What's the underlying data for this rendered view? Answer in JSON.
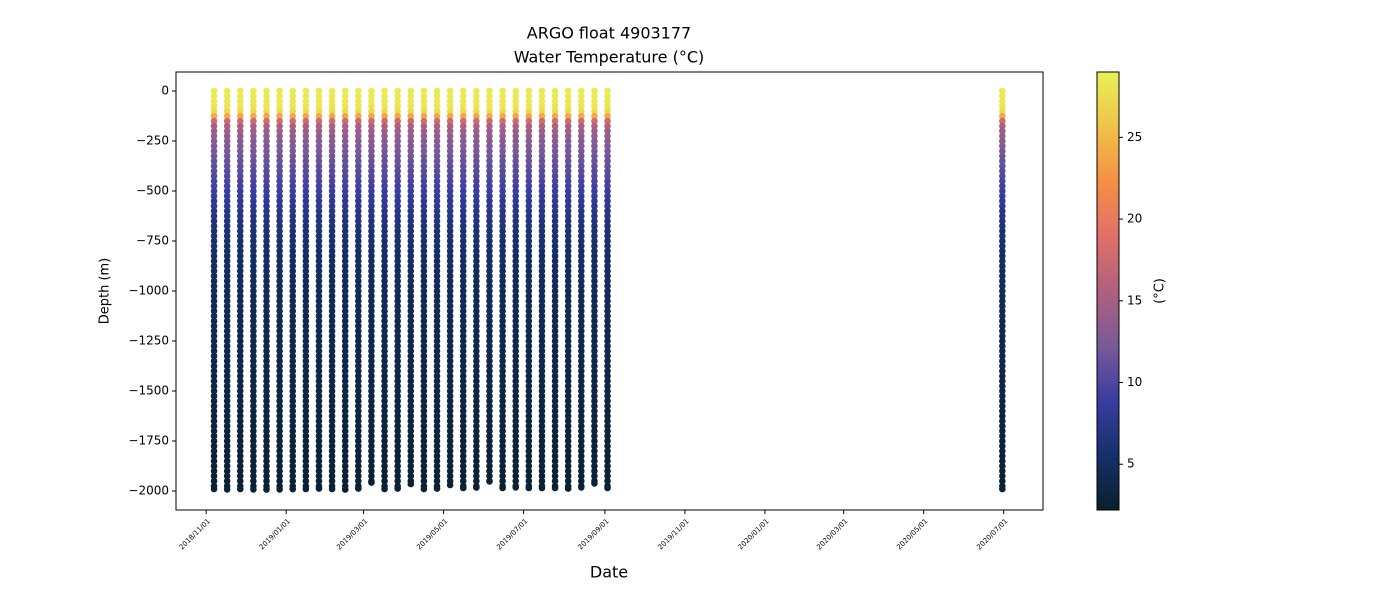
{
  "chart_data": {
    "type": "scatter",
    "title": "ARGO float 4903177",
    "subtitle": "Water Temperature (°C)",
    "x_label": "Date",
    "y_label": "Depth (m)",
    "colorbar_label": "(°C)",
    "x": [
      "2018-11-07",
      "2018-11-17",
      "2018-11-27",
      "2018-12-07",
      "2018-12-17",
      "2018-12-27",
      "2019-01-06",
      "2019-01-16",
      "2019-01-26",
      "2019-02-05",
      "2019-02-15",
      "2019-02-25",
      "2019-03-07",
      "2019-03-17",
      "2019-03-27",
      "2019-04-06",
      "2019-04-16",
      "2019-04-26",
      "2019-05-06",
      "2019-05-16",
      "2019-05-26",
      "2019-06-05",
      "2019-06-15",
      "2019-06-25",
      "2019-07-05",
      "2019-07-15",
      "2019-07-25",
      "2019-08-04",
      "2019-08-14",
      "2019-08-24",
      "2019-09-03",
      "2020-06-30"
    ],
    "bottom_depth": [
      -1990,
      -1992,
      -1990,
      -1992,
      -1993,
      -1992,
      -1991,
      -1990,
      -1988,
      -1990,
      -1993,
      -1988,
      -1958,
      -1990,
      -1988,
      -1965,
      -1990,
      -1988,
      -1970,
      -1985,
      -1983,
      -1952,
      -1985,
      -1982,
      -1985,
      -1985,
      -1985,
      -1988,
      -1982,
      -1962,
      -1985,
      -1990
    ],
    "levels": [
      0,
      -25,
      -50,
      -75,
      -100,
      -125,
      -150,
      -175,
      -200,
      -225,
      -250,
      -275,
      -300,
      -325,
      -350,
      -375,
      -400,
      -425,
      -450,
      -475,
      -500,
      -525,
      -550,
      -575,
      -600,
      -625,
      -650,
      -675,
      -700,
      -725,
      -750,
      -775,
      -800,
      -825,
      -850,
      -875,
      -900,
      -925,
      -950,
      -975,
      -1000,
      -1025,
      -1050,
      -1075,
      -1100,
      -1125,
      -1150,
      -1175,
      -1200,
      -1225,
      -1250,
      -1275,
      -1300,
      -1325,
      -1350,
      -1375,
      -1400,
      -1425,
      -1450,
      -1475,
      -1500,
      -1525,
      -1550,
      -1575,
      -1600,
      -1625,
      -1650,
      -1675,
      -1700,
      -1725,
      -1750,
      -1775,
      -1800,
      -1825,
      -1850,
      -1875,
      -1900,
      -1925,
      -1950,
      -1975,
      -2000
    ],
    "temperatures": [
      28.5,
      28.5,
      28.4,
      28.2,
      27.5,
      24,
      18,
      15.5,
      14.5,
      13.8,
      13.2,
      12.7,
      12.2,
      11.8,
      11.4,
      11,
      10.6,
      10.2,
      9.8,
      9.4,
      9,
      8.6,
      8.2,
      7.8,
      7.4,
      7.1,
      6.8,
      6.5,
      6.2,
      6,
      5.8,
      5.6,
      5.4,
      5.3,
      5.1,
      5,
      4.9,
      4.8,
      4.7,
      4.6,
      4.5,
      4.45,
      4.4,
      4.35,
      4.3,
      4.25,
      4.2,
      4.15,
      4.1,
      4.05,
      4,
      3.95,
      3.9,
      3.85,
      3.8,
      3.75,
      3.7,
      3.65,
      3.6,
      3.55,
      3.5,
      3.45,
      3.4,
      3.35,
      3.3,
      3.25,
      3.2,
      3.15,
      3.1,
      3.05,
      3,
      2.95,
      2.9,
      2.85,
      2.8,
      2.75,
      2.7,
      2.65,
      2.6,
      2.55,
      2.5
    ],
    "colormap": [
      "#0a1f2e",
      "#16306a",
      "#3a3ca0",
      "#7a5a98",
      "#b0607e",
      "#e07068",
      "#f48f45",
      "#f0c24a",
      "#e9f154"
    ],
    "clim": [
      2.2,
      29
    ],
    "cticks": [
      5,
      10,
      15,
      20,
      25
    ],
    "xlim": [
      "2018-10-09",
      "2020-07-31"
    ],
    "xticks": [
      {
        "value": "2018-11-01",
        "label": "2018/11/01"
      },
      {
        "value": "2019-01-01",
        "label": "2019/01/01"
      },
      {
        "value": "2019-03-01",
        "label": "2019/03/01"
      },
      {
        "value": "2019-05-01",
        "label": "2019/05/01"
      },
      {
        "value": "2019-07-01",
        "label": "2019/07/01"
      },
      {
        "value": "2019-09-01",
        "label": "2019/09/01"
      },
      {
        "value": "2019-11-01",
        "label": "2019/11/01"
      },
      {
        "value": "2020-01-01",
        "label": "2020/01/01"
      },
      {
        "value": "2020-03-01",
        "label": "2020/03/01"
      },
      {
        "value": "2020-05-01",
        "label": "2020/05/01"
      },
      {
        "value": "2020-07-01",
        "label": "2020/07/01"
      }
    ],
    "ylim": [
      -2095,
      95
    ],
    "yticks": [
      0,
      {
        "value": -250,
        "label": "−250"
      },
      {
        "value": -500,
        "label": "−500"
      },
      {
        "value": -750,
        "label": "−750"
      },
      {
        "value": -1000,
        "label": "−1000"
      },
      {
        "value": -1250,
        "label": "−1250"
      },
      {
        "value": -1500,
        "label": "−1500"
      },
      {
        "value": -1750,
        "label": "−1750"
      },
      {
        "value": -2000,
        "label": "−2000"
      }
    ]
  }
}
